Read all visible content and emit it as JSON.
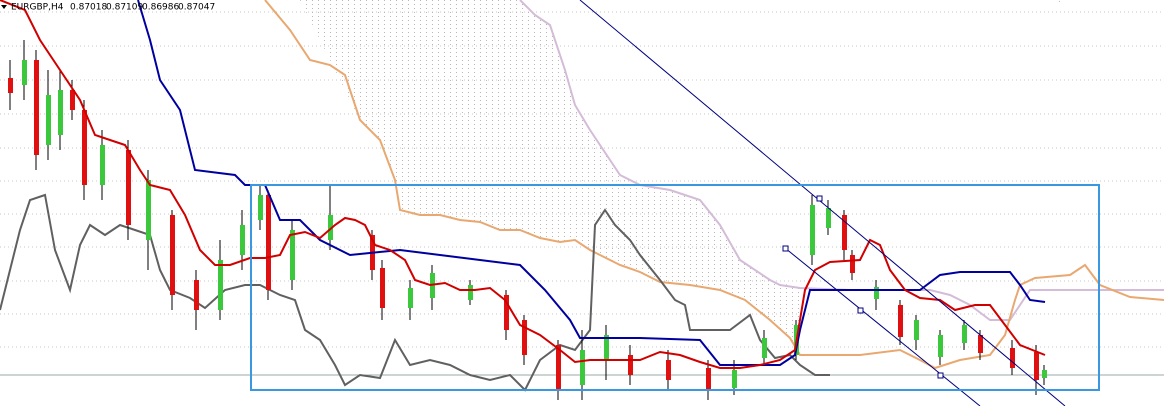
{
  "header": {
    "symbol": "EURGBP,H4",
    "prices": [
      "0.87018",
      "0.87109",
      "0.86986",
      "0.87047"
    ]
  }
}
